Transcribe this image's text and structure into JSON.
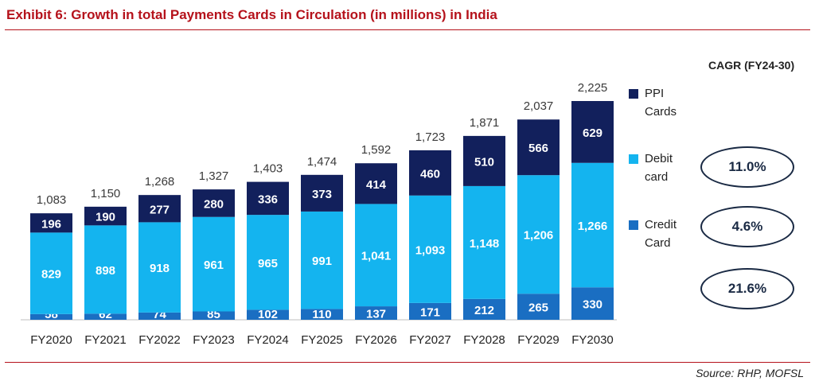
{
  "title": "Exhibit 6: Growth in total Payments Cards in Circulation (in millions) in India",
  "source": "Source: RHP, MOFSL",
  "colors": {
    "ppi": "#12205c",
    "debit": "#14b4ef",
    "credit": "#1a6ec2",
    "title": "#b5121b"
  },
  "legend": [
    {
      "key": "ppi",
      "lines": [
        "PPI",
        "Cards"
      ]
    },
    {
      "key": "debit",
      "lines": [
        "Debit",
        "card"
      ]
    },
    {
      "key": "credit",
      "lines": [
        "Credit",
        "Card"
      ]
    }
  ],
  "cagr": {
    "heading": "CAGR (FY24-30)",
    "values": [
      "11.0%",
      "4.6%",
      "21.6%"
    ]
  },
  "chart_data": {
    "type": "bar",
    "stacked": true,
    "categories": [
      "FY2020",
      "FY2021",
      "FY2022",
      "FY2023",
      "FY2024",
      "FY2025",
      "FY2026",
      "FY2027",
      "FY2028",
      "FY2029",
      "FY2030"
    ],
    "series": [
      {
        "name": "Credit Card",
        "values": [
          58,
          62,
          74,
          85,
          102,
          110,
          137,
          171,
          212,
          265,
          330
        ]
      },
      {
        "name": "Debit card",
        "values": [
          829,
          898,
          918,
          961,
          965,
          991,
          1041,
          1093,
          1148,
          1206,
          1266
        ]
      },
      {
        "name": "PPI Cards",
        "values": [
          196,
          190,
          277,
          280,
          336,
          373,
          414,
          460,
          510,
          566,
          629
        ]
      }
    ],
    "value_labels": {
      "Credit Card": [
        "58",
        "62",
        "74",
        "85",
        "102",
        "110",
        "137",
        "171",
        "212",
        "265",
        "330"
      ],
      "Debit card": [
        "829",
        "898",
        "918",
        "961",
        "965",
        "991",
        "1,041",
        "1,093",
        "1,148",
        "1,206",
        "1,266"
      ],
      "PPI Cards": [
        "196",
        "190",
        "277",
        "280",
        "336",
        "373",
        "414",
        "460",
        "510",
        "566",
        "629"
      ]
    },
    "totals": [
      "1,083",
      "1,150",
      "1,268",
      "1,327",
      "1,403",
      "1,474",
      "1,592",
      "1,723",
      "1,871",
      "2,037",
      "2,225"
    ],
    "ylim": [
      0,
      2225
    ],
    "grid": false,
    "legend_position": "right"
  }
}
